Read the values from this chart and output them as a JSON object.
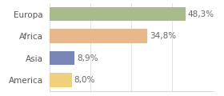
{
  "categories": [
    "Europa",
    "Africa",
    "Asia",
    "America"
  ],
  "values": [
    48.3,
    34.8,
    8.9,
    8.0
  ],
  "labels": [
    "48,3%",
    "34,8%",
    "8,9%",
    "8,0%"
  ],
  "bar_colors": [
    "#a8bb8a",
    "#e8b88a",
    "#7b86b8",
    "#f0d07a"
  ],
  "background_color": "#ffffff",
  "xlim": [
    0,
    58
  ],
  "bar_height": 0.65,
  "label_fontsize": 7.5,
  "category_fontsize": 7.5,
  "grid_lines": [
    0,
    14.5,
    29,
    43.5,
    58
  ]
}
